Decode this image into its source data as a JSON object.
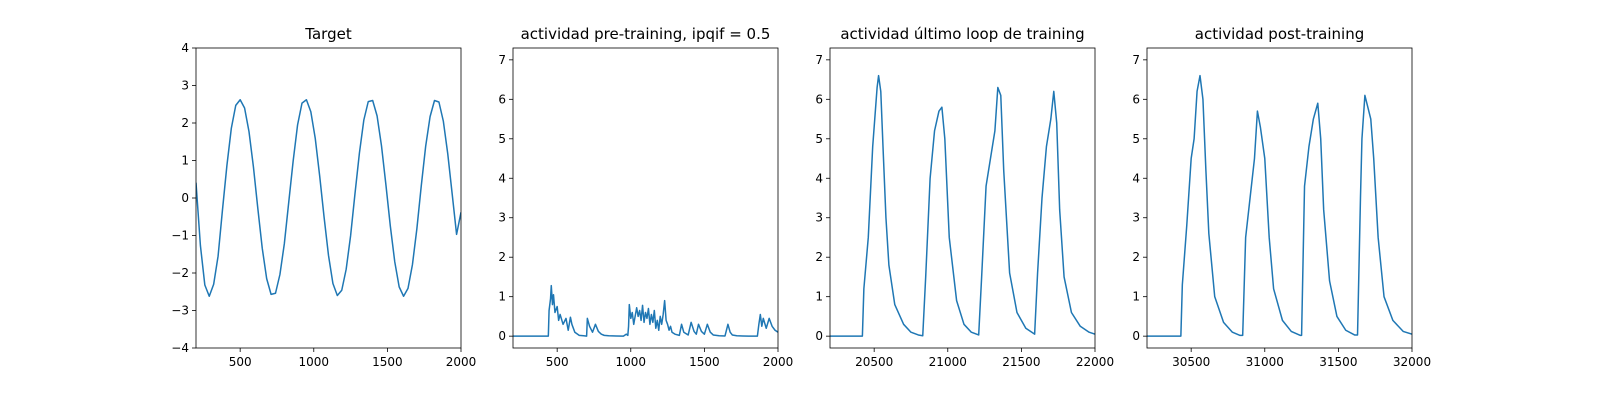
{
  "figure": {
    "background": "#ffffff"
  },
  "line_color": "#1f77b4",
  "chart_data": [
    {
      "type": "line",
      "title": "Target",
      "xlim": [
        200,
        2000
      ],
      "ylim": [
        -4,
        4
      ],
      "xticks": [
        500,
        1000,
        1500,
        2000
      ],
      "yticks": [
        -4,
        -3,
        -2,
        -1,
        0,
        1,
        2,
        3,
        4
      ],
      "series": [
        {
          "x": [
            200,
            230,
            260,
            290,
            320,
            350,
            380,
            410,
            440,
            470,
            500,
            530,
            560,
            590,
            620,
            650,
            680,
            710,
            740,
            770,
            800,
            830,
            860,
            890,
            920,
            950,
            980,
            1010,
            1040,
            1070,
            1100,
            1130,
            1160,
            1190,
            1220,
            1250,
            1280,
            1310,
            1340,
            1370,
            1400,
            1430,
            1460,
            1490,
            1520,
            1550,
            1580,
            1610,
            1640,
            1670,
            1700,
            1730,
            1760,
            1790,
            1820,
            1850,
            1880,
            1910,
            1940,
            1970,
            2000
          ],
          "values": [
            0.41,
            -1.27,
            -2.32,
            -2.62,
            -2.3,
            -1.55,
            -0.31,
            0.87,
            1.86,
            2.47,
            2.62,
            2.4,
            1.77,
            0.83,
            -0.28,
            -1.34,
            -2.15,
            -2.57,
            -2.54,
            -2.04,
            -1.22,
            -0.11,
            0.99,
            1.95,
            2.53,
            2.62,
            2.3,
            1.59,
            0.59,
            -0.51,
            -1.53,
            -2.28,
            -2.6,
            -2.46,
            -1.9,
            -1.01,
            0.12,
            1.2,
            2.08,
            2.57,
            2.6,
            2.19,
            1.39,
            0.35,
            -0.75,
            -1.7,
            -2.37,
            -2.62,
            -2.41,
            -1.78,
            -0.83,
            0.32,
            1.38,
            2.17,
            2.6,
            2.56,
            2.05,
            1.18,
            0.11,
            -0.97,
            -0.38
          ]
        }
      ]
    },
    {
      "type": "line",
      "title": "actividad pre-training, ipqif = 0.5",
      "xlim": [
        200,
        2000
      ],
      "ylim": [
        -0.3,
        7.3
      ],
      "xticks": [
        500,
        1000,
        1500,
        2000
      ],
      "yticks": [
        0,
        1,
        2,
        3,
        4,
        5,
        6,
        7
      ],
      "series": [
        {
          "x": [
            200,
            440,
            445,
            455,
            460,
            468,
            475,
            485,
            500,
            510,
            520,
            540,
            560,
            575,
            590,
            600,
            620,
            650,
            680,
            700,
            705,
            720,
            740,
            760,
            780,
            800,
            820,
            850,
            900,
            950,
            970,
            980,
            985,
            990,
            1000,
            1010,
            1020,
            1040,
            1050,
            1060,
            1070,
            1080,
            1090,
            1100,
            1110,
            1120,
            1130,
            1140,
            1150,
            1160,
            1170,
            1180,
            1190,
            1200,
            1210,
            1220,
            1230,
            1240,
            1250,
            1260,
            1270,
            1280,
            1300,
            1330,
            1345,
            1360,
            1390,
            1410,
            1430,
            1445,
            1460,
            1480,
            1500,
            1520,
            1540,
            1560,
            1600,
            1640,
            1660,
            1675,
            1690,
            1720,
            1760,
            1800,
            1860,
            1870,
            1880,
            1890,
            1900,
            1920,
            1940,
            1960,
            1980,
            2000
          ],
          "values": [
            0,
            0,
            0.65,
            0.95,
            1.28,
            0.8,
            1.05,
            0.6,
            0.75,
            0.4,
            0.55,
            0.3,
            0.45,
            0.15,
            0.48,
            0.3,
            0.1,
            0.02,
            0.01,
            0,
            0.45,
            0.25,
            0.1,
            0.3,
            0.12,
            0.05,
            0.02,
            0.01,
            0.005,
            0,
            0.05,
            0.02,
            0.25,
            0.8,
            0.45,
            0.6,
            0.3,
            0.72,
            0.5,
            0.65,
            0.4,
            0.78,
            0.35,
            0.6,
            0.45,
            0.7,
            0.3,
            0.55,
            0.35,
            0.65,
            0.2,
            0.4,
            0.15,
            0.5,
            0.3,
            0.55,
            0.9,
            0.4,
            0.3,
            0.15,
            0.25,
            0.1,
            0.05,
            0.02,
            0.3,
            0.1,
            0.03,
            0.35,
            0.12,
            0.05,
            0.3,
            0.12,
            0.05,
            0.3,
            0.1,
            0.03,
            0.01,
            0.005,
            0.3,
            0.1,
            0.03,
            0.01,
            0.005,
            0,
            0,
            0.3,
            0.55,
            0.25,
            0.45,
            0.2,
            0.45,
            0.25,
            0.15,
            0.1
          ]
        }
      ]
    },
    {
      "type": "line",
      "title": "actividad último loop de training",
      "xlim": [
        20200,
        22000
      ],
      "ylim": [
        -0.3,
        7.3
      ],
      "xticks": [
        20500,
        21000,
        21500,
        22000
      ],
      "yticks": [
        0,
        1,
        2,
        3,
        4,
        5,
        6,
        7
      ],
      "series": [
        {
          "x": [
            20200,
            20420,
            20430,
            20460,
            20490,
            20520,
            20530,
            20545,
            20560,
            20580,
            20600,
            20640,
            20700,
            20750,
            20800,
            20830,
            20850,
            20880,
            20910,
            20940,
            20960,
            20980,
            21010,
            21060,
            21110,
            21160,
            21210,
            21230,
            21260,
            21290,
            21320,
            21340,
            21360,
            21380,
            21420,
            21470,
            21530,
            21590,
            21610,
            21640,
            21670,
            21700,
            21720,
            21740,
            21760,
            21790,
            21840,
            21900,
            21960,
            22000
          ],
          "values": [
            0,
            0,
            1.2,
            2.5,
            4.8,
            6.3,
            6.6,
            6.2,
            4.8,
            3.0,
            1.8,
            0.8,
            0.3,
            0.1,
            0.03,
            0.01,
            1.5,
            4.0,
            5.2,
            5.7,
            5.8,
            5.0,
            2.5,
            0.9,
            0.3,
            0.1,
            0.03,
            1.5,
            3.8,
            4.5,
            5.2,
            6.3,
            6.1,
            4.2,
            1.6,
            0.6,
            0.2,
            0.05,
            1.6,
            3.5,
            4.8,
            5.5,
            6.2,
            5.4,
            3.2,
            1.5,
            0.6,
            0.25,
            0.1,
            0.05
          ]
        }
      ]
    },
    {
      "type": "line",
      "title": "actividad post-training",
      "xlim": [
        30200,
        32000
      ],
      "ylim": [
        -0.3,
        7.3
      ],
      "xticks": [
        30500,
        31000,
        31500,
        32000
      ],
      "yticks": [
        0,
        1,
        2,
        3,
        4,
        5,
        6,
        7
      ],
      "series": [
        {
          "x": [
            30200,
            30430,
            30440,
            30470,
            30500,
            30520,
            30540,
            30560,
            30580,
            30600,
            30620,
            30660,
            30720,
            30780,
            30830,
            30850,
            30870,
            30900,
            30930,
            30950,
            30970,
            31000,
            31030,
            31060,
            31120,
            31180,
            31240,
            31250,
            31270,
            31300,
            31330,
            31360,
            31380,
            31400,
            31440,
            31490,
            31550,
            31610,
            31630,
            31650,
            31660,
            31680,
            31700,
            31720,
            31740,
            31770,
            31810,
            31870,
            31940,
            32000
          ],
          "values": [
            0,
            0,
            1.3,
            2.8,
            4.5,
            5.0,
            6.2,
            6.6,
            6.0,
            4.2,
            2.6,
            1.0,
            0.35,
            0.1,
            0.02,
            0.02,
            2.5,
            3.5,
            4.5,
            5.7,
            5.3,
            4.5,
            2.5,
            1.2,
            0.4,
            0.12,
            0.02,
            0.02,
            3.8,
            4.8,
            5.5,
            5.9,
            5.0,
            3.2,
            1.4,
            0.5,
            0.15,
            0.03,
            0.03,
            3.5,
            5.0,
            6.1,
            5.8,
            5.5,
            4.5,
            2.5,
            1.0,
            0.4,
            0.12,
            0.05
          ]
        }
      ]
    }
  ]
}
